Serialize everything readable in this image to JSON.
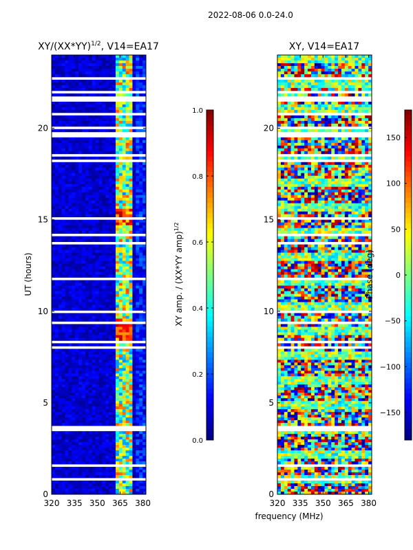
{
  "figure": {
    "suptitle": "2022-08-06 0.0-24.0",
    "shared_xlabel": "frequency (MHz)"
  },
  "chart_data": [
    {
      "type": "heatmap",
      "title": "XY/(XX*YY)",
      "title_sup": "1/2",
      "title_suffix": ", V14=EA17",
      "ylabel": "UT (hours)",
      "xlim": [
        320,
        382
      ],
      "ylim": [
        0,
        24
      ],
      "xticks": [
        320,
        335,
        350,
        365,
        380
      ],
      "yticks": [
        0,
        5,
        10,
        15,
        20
      ],
      "colormap": "jet",
      "colorbar": {
        "label": "XY amp. / (XX*YY amp)",
        "label_sup": "1/2",
        "range": [
          0.0,
          1.0
        ],
        "ticks": [
          "0.0",
          "0.2",
          "0.4",
          "0.6",
          "0.8",
          "1.0"
        ]
      }
    },
    {
      "type": "heatmap",
      "title": "XY, V14=EA17",
      "ylabel": "",
      "xlim": [
        320,
        382
      ],
      "ylim": [
        0,
        24
      ],
      "xticks": [
        320,
        335,
        350,
        365,
        380
      ],
      "yticks": [
        0,
        5,
        10,
        15,
        20
      ],
      "colormap": "jet",
      "colorbar": {
        "label": "Phase (deg)",
        "range": [
          -180,
          180
        ],
        "ticks": [
          -150,
          -100,
          -50,
          0,
          50,
          100,
          150
        ]
      }
    }
  ]
}
